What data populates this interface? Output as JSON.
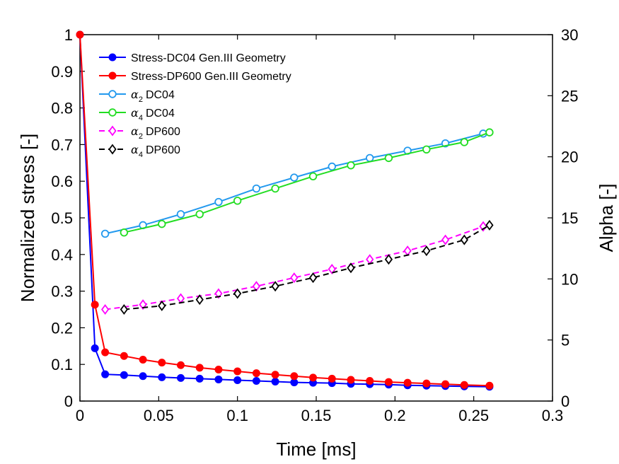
{
  "chart_data": {
    "type": "line",
    "title": "",
    "xlabel": "Time [ms]",
    "ylabel": "Normalized stress [-]",
    "y2label": "Alpha [-]",
    "xlim": [
      0,
      0.3
    ],
    "ylim": [
      0,
      1
    ],
    "y2lim": [
      0,
      30
    ],
    "xticks": [
      "0",
      "0.05",
      "0.1",
      "0.15",
      "0.2",
      "0.25",
      "0.3"
    ],
    "yticks": [
      "0",
      "0.1",
      "0.2",
      "0.3",
      "0.4",
      "0.5",
      "0.6",
      "0.7",
      "0.8",
      "0.9",
      "1"
    ],
    "y2ticks": [
      "0",
      "5",
      "10",
      "15",
      "20",
      "25",
      "30"
    ],
    "grid": false,
    "legend_position": "top-left",
    "series": [
      {
        "name": "Stress-DC04 Gen.III Geometry",
        "axis": "left",
        "color": "#0000ff",
        "marker": "filled-circle",
        "dash": "solid",
        "x": [
          0,
          0.0095,
          0.016,
          0.028,
          0.04,
          0.052,
          0.064,
          0.076,
          0.088,
          0.1,
          0.112,
          0.124,
          0.136,
          0.148,
          0.16,
          0.172,
          0.184,
          0.196,
          0.208,
          0.22,
          0.232,
          0.244,
          0.26
        ],
        "y": [
          1.0,
          0.144,
          0.073,
          0.071,
          0.068,
          0.065,
          0.063,
          0.061,
          0.059,
          0.057,
          0.055,
          0.053,
          0.051,
          0.05,
          0.049,
          0.047,
          0.046,
          0.045,
          0.043,
          0.042,
          0.041,
          0.04,
          0.039
        ]
      },
      {
        "name": "Stress-DP600 Gen.III Geometry",
        "axis": "left",
        "color": "#ff0000",
        "marker": "filled-circle",
        "dash": "solid",
        "x": [
          0,
          0.0095,
          0.016,
          0.028,
          0.04,
          0.052,
          0.064,
          0.076,
          0.088,
          0.1,
          0.112,
          0.124,
          0.136,
          0.148,
          0.16,
          0.172,
          0.184,
          0.196,
          0.208,
          0.22,
          0.232,
          0.244,
          0.26
        ],
        "y": [
          1.0,
          0.263,
          0.133,
          0.123,
          0.113,
          0.105,
          0.098,
          0.091,
          0.086,
          0.081,
          0.076,
          0.072,
          0.068,
          0.064,
          0.061,
          0.058,
          0.055,
          0.052,
          0.05,
          0.048,
          0.046,
          0.044,
          0.042
        ]
      },
      {
        "name": "α2 DC04",
        "label_symbol": "α",
        "label_sub": "2",
        "label_rest": "DC04",
        "axis": "right",
        "color": "#2299ee",
        "marker": "open-circle",
        "dash": "solid",
        "x": [
          0.016,
          0.04,
          0.064,
          0.088,
          0.112,
          0.136,
          0.16,
          0.184,
          0.208,
          0.232,
          0.256
        ],
        "y": [
          13.7,
          14.4,
          15.3,
          16.3,
          17.4,
          18.3,
          19.2,
          19.9,
          20.5,
          21.1,
          21.9
        ]
      },
      {
        "name": "α4 DC04",
        "label_symbol": "α",
        "label_sub": "4",
        "label_rest": "DC04",
        "axis": "right",
        "color": "#22dd22",
        "marker": "open-circle",
        "dash": "solid",
        "x": [
          0.028,
          0.052,
          0.076,
          0.1,
          0.124,
          0.148,
          0.172,
          0.196,
          0.22,
          0.244,
          0.26
        ],
        "y": [
          13.8,
          14.5,
          15.3,
          16.4,
          17.4,
          18.4,
          19.3,
          19.9,
          20.6,
          21.2,
          22.0
        ]
      },
      {
        "name": "α2 DP600",
        "label_symbol": "α",
        "label_sub": "2",
        "label_rest": "DP600",
        "axis": "right",
        "color": "#ff00ff",
        "marker": "open-diamond",
        "dash": "dashed",
        "x": [
          0.016,
          0.04,
          0.064,
          0.088,
          0.112,
          0.136,
          0.16,
          0.184,
          0.208,
          0.232,
          0.256
        ],
        "y": [
          7.5,
          7.9,
          8.4,
          8.8,
          9.4,
          10.1,
          10.8,
          11.6,
          12.3,
          13.2,
          14.3
        ]
      },
      {
        "name": "α4 DP600",
        "label_symbol": "α",
        "label_sub": "4",
        "label_rest": "DP600",
        "axis": "right",
        "color": "#000000",
        "marker": "open-diamond",
        "dash": "dashed",
        "x": [
          0.028,
          0.052,
          0.076,
          0.1,
          0.124,
          0.148,
          0.172,
          0.196,
          0.22,
          0.244,
          0.26
        ],
        "y": [
          7.5,
          7.8,
          8.3,
          8.8,
          9.4,
          10.1,
          10.9,
          11.6,
          12.3,
          13.2,
          14.4
        ]
      }
    ]
  }
}
